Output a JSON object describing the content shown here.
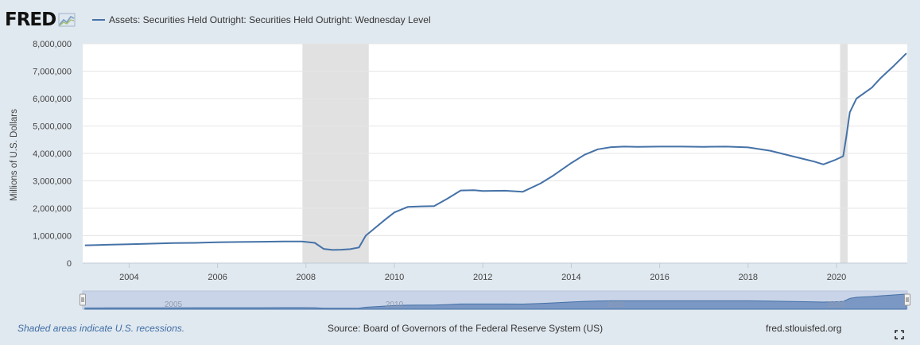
{
  "header": {
    "logo_text": "FRED",
    "logo_icon": "line-chart-icon",
    "legend_label": "Assets: Securities Held Outright: Securities Held Outright: Wednesday Level"
  },
  "footer": {
    "recession_note": "Shaded areas indicate U.S. recessions.",
    "source": "Source: Board of Governors of the Federal Reserve System (US)",
    "site": "fred.stlouisfed.org",
    "fullscreen_icon": "fullscreen-icon"
  },
  "colors": {
    "series": "#4572a7",
    "recession": "#e1e1e1",
    "grid": "#e6e6e6",
    "background": "#e1e9f0",
    "navigator_fill": "#7b97c4",
    "navigator_mask": "#c9d4e8"
  },
  "chart_data": {
    "type": "line",
    "title": "",
    "xlabel": "",
    "ylabel": "Millions of U.S. Dollars",
    "xlim": [
      2002.95,
      2021.6
    ],
    "ylim": [
      0,
      8000000
    ],
    "x_ticks": [
      "2004",
      "2006",
      "2008",
      "2010",
      "2012",
      "2014",
      "2016",
      "2018",
      "2020"
    ],
    "y_ticks": [
      "0",
      "1,000,000",
      "2,000,000",
      "3,000,000",
      "4,000,000",
      "5,000,000",
      "6,000,000",
      "7,000,000",
      "8,000,000"
    ],
    "grid": true,
    "legend_position": "top-left",
    "recessions": [
      [
        2007.92,
        2009.42
      ],
      [
        2020.08,
        2020.25
      ]
    ],
    "navigator_ticks": [
      "2005",
      "2010",
      "2015",
      "2020"
    ],
    "series": [
      {
        "name": "Assets: Securities Held Outright: Securities Held Outright: Wednesday Level",
        "x": [
          2003.0,
          2003.5,
          2004.0,
          2004.5,
          2005.0,
          2005.5,
          2006.0,
          2006.5,
          2007.0,
          2007.5,
          2007.9,
          2008.2,
          2008.4,
          2008.6,
          2008.8,
          2009.0,
          2009.2,
          2009.35,
          2009.5,
          2009.8,
          2010.0,
          2010.3,
          2010.6,
          2010.9,
          2011.2,
          2011.5,
          2011.8,
          2012.0,
          2012.5,
          2012.9,
          2013.3,
          2013.6,
          2014.0,
          2014.3,
          2014.6,
          2014.9,
          2015.2,
          2015.5,
          2016.0,
          2016.5,
          2017.0,
          2017.5,
          2018.0,
          2018.5,
          2019.0,
          2019.5,
          2019.7,
          2019.95,
          2020.15,
          2020.22,
          2020.3,
          2020.45,
          2020.8,
          2021.0,
          2021.3,
          2021.58
        ],
        "values": [
          650000,
          670000,
          690000,
          710000,
          730000,
          740000,
          760000,
          770000,
          780000,
          790000,
          790000,
          740000,
          520000,
          480000,
          490000,
          510000,
          570000,
          1000000,
          1200000,
          1600000,
          1850000,
          2050000,
          2070000,
          2080000,
          2350000,
          2650000,
          2660000,
          2630000,
          2640000,
          2600000,
          2900000,
          3200000,
          3650000,
          3950000,
          4150000,
          4230000,
          4250000,
          4240000,
          4250000,
          4250000,
          4240000,
          4250000,
          4220000,
          4100000,
          3900000,
          3700000,
          3600000,
          3750000,
          3900000,
          4600000,
          5500000,
          6000000,
          6400000,
          6750000,
          7200000,
          7650000
        ]
      }
    ]
  }
}
